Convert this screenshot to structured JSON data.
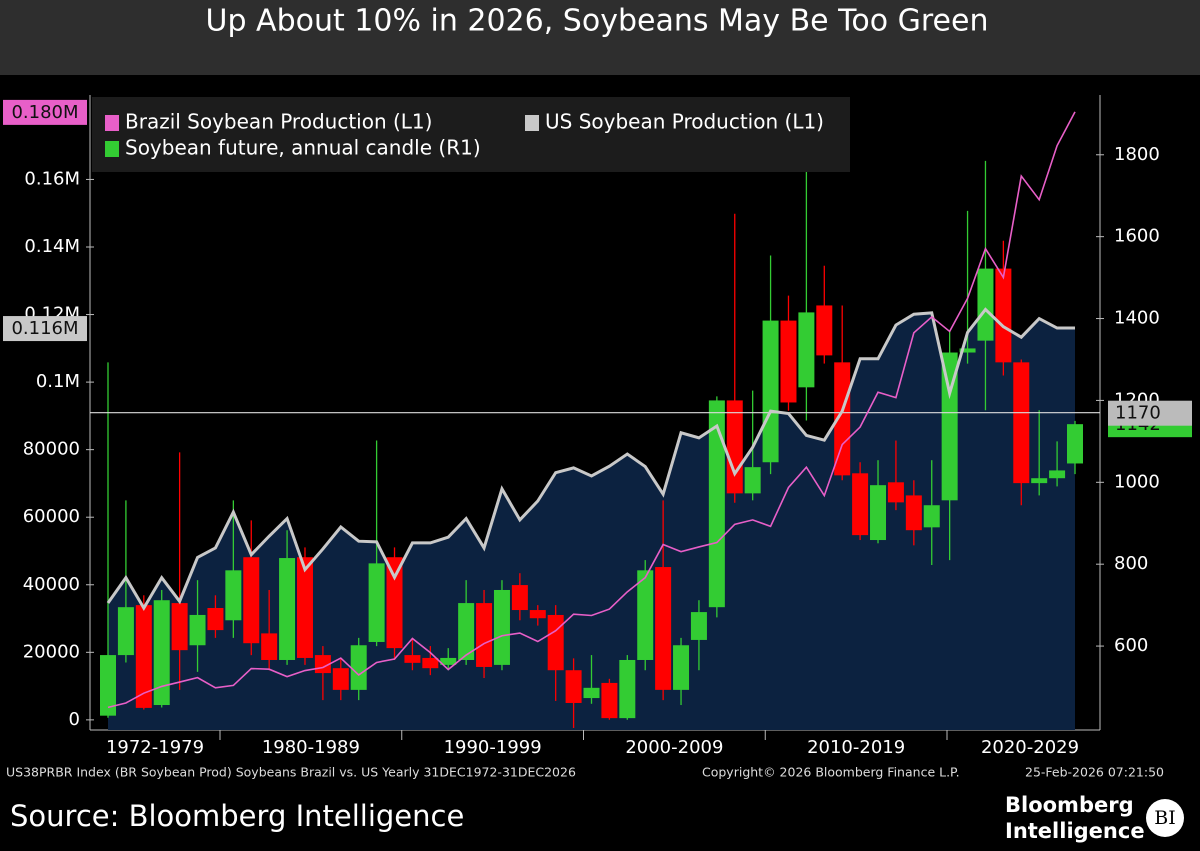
{
  "chart_data": {
    "type": "combo",
    "title": "Up About 10% in 2026, Soybeans May Be Too Green",
    "x": [
      1972,
      1973,
      1974,
      1975,
      1976,
      1977,
      1978,
      1979,
      1980,
      1981,
      1982,
      1983,
      1984,
      1985,
      1986,
      1987,
      1988,
      1989,
      1990,
      1991,
      1992,
      1993,
      1994,
      1995,
      1996,
      1997,
      1998,
      1999,
      2000,
      2001,
      2002,
      2003,
      2004,
      2005,
      2006,
      2007,
      2008,
      2009,
      2010,
      2011,
      2012,
      2013,
      2014,
      2015,
      2016,
      2017,
      2018,
      2019,
      2020,
      2021,
      2022,
      2023,
      2024,
      2025,
      2026
    ],
    "x_group_labels": [
      "1972-1979",
      "1980-1989",
      "1990-1999",
      "2000-2009",
      "2010-2019",
      "2020-2029"
    ],
    "series": [
      {
        "name": "Brazil Soybean Production (L1)",
        "type": "line",
        "axis": "y",
        "color": "#e85fc8",
        "values": [
          3700,
          5000,
          7900,
          9900,
          11200,
          12500,
          9500,
          10200,
          15200,
          15000,
          12800,
          14600,
          15500,
          18300,
          13300,
          17000,
          18000,
          24100,
          19900,
          14900,
          19200,
          22600,
          24900,
          25700,
          23200,
          26400,
          31300,
          30900,
          32800,
          37900,
          42100,
          51900,
          49800,
          51200,
          52500,
          57900,
          59200,
          57300,
          68800,
          74800,
          66400,
          81500,
          86700,
          97000,
          95400,
          114600,
          119300,
          115000,
          124800,
          139500,
          131000,
          161000,
          154000,
          170000,
          180000
        ]
      },
      {
        "name": "US Soybean Production (L1)",
        "type": "area",
        "axis": "y",
        "color": "#c8c8c8",
        "fill": "#0c2240",
        "values": [
          34600,
          42100,
          33100,
          42100,
          35100,
          48100,
          50900,
          61500,
          48900,
          54400,
          59600,
          44500,
          50600,
          57100,
          52900,
          52700,
          42200,
          52400,
          52400,
          54100,
          59600,
          50900,
          68400,
          59200,
          64800,
          73200,
          74600,
          72200,
          75100,
          78700,
          75000,
          66800,
          85000,
          83500,
          87000,
          72900,
          80700,
          91400,
          90700,
          84200,
          82800,
          91400,
          106900,
          106900,
          116900,
          120100,
          120500,
          96700,
          114700,
          121500,
          116400,
          113300,
          118800,
          116000,
          116000
        ]
      },
      {
        "name": "Soybean future, annual candle (R1)",
        "type": "candlestick",
        "axis": "y2",
        "color": "#33cc33",
        "down_color": "#ff0000",
        "open": [
          430,
          578,
          700,
          456,
          705,
          602,
          693,
          663,
          817,
          631,
          566,
          817,
          578,
          546,
          493,
          610,
          817,
          578,
          571,
          554,
          566,
          705,
          554,
          749,
          688,
          676,
          541,
          473,
          510,
          424,
          566,
          793,
          493,
          615,
          695,
          1200,
          973,
          1049,
          1395,
          1232,
          1432,
          1293,
          1022,
          859,
          1000,
          968,
          890,
          956,
          1317,
          1346,
          1522,
          1293,
          998,
          1010,
          1046
        ],
        "high": [
          1293,
          956,
          724,
          737,
          1073,
          761,
          724,
          956,
          907,
          737,
          883,
          841,
          600,
          570,
          620,
          1102,
          841,
          620,
          600,
          595,
          761,
          737,
          761,
          778,
          700,
          700,
          570,
          578,
          520,
          578,
          810,
          956,
          620,
          712,
          1210,
          1656,
          1224,
          1554,
          1456,
          1785,
          1529,
          1432,
          1049,
          1054,
          1102,
          1005,
          1054,
          1371,
          1663,
          1785,
          1590,
          1300,
          1176,
          1100,
          1150
        ],
        "low": [
          425,
          560,
          445,
          450,
          493,
          537,
          620,
          620,
          578,
          541,
          554,
          554,
          468,
          468,
          468,
          600,
          566,
          541,
          529,
          541,
          554,
          522,
          541,
          663,
          650,
          466,
          400,
          459,
          420,
          420,
          541,
          468,
          456,
          541,
          670,
          950,
          956,
          1020,
          1175,
          1151,
          1290,
          1005,
          859,
          851,
          932,
          846,
          798,
          810,
          1290,
          1176,
          1261,
          944,
          968,
          990,
          1020
        ],
        "close": [
          578,
          695,
          449,
          712,
          590,
          676,
          639,
          785,
          607,
          566,
          815,
          571,
          534,
          493,
          602,
          802,
          595,
          559,
          546,
          571,
          705,
          549,
          737,
          688,
          668,
          541,
          461,
          498,
          424,
          566,
          785,
          493,
          602,
          683,
          1200,
          973,
          1037,
          1395,
          1195,
          1415,
          1310,
          1017,
          871,
          993,
          951,
          883,
          944,
          1317,
          1327,
          1522,
          1293,
          998,
          1010,
          1029,
          1142
        ]
      }
    ],
    "ylim": [
      -3000,
      185000
    ],
    "yticks": [
      0,
      20000,
      40000,
      60000,
      80000,
      {
        "value": 100000,
        "label": "0.1M"
      },
      {
        "value": 120000,
        "label": "0.12M"
      },
      {
        "value": 140000,
        "label": "0.14M"
      },
      {
        "value": 160000,
        "label": "0.16M"
      }
    ],
    "y2lim": [
      395,
      1946
    ],
    "y2ticks": [
      600,
      800,
      1000,
      1200,
      1400,
      1600,
      1800
    ],
    "left_value_labels": [
      {
        "value": 180000,
        "label": "0.180M",
        "color": "#e85fc8"
      },
      {
        "value": 116000,
        "label": "0.116M",
        "color": "#c8c8c8"
      }
    ],
    "right_value_labels": [
      1142,
      1170
    ],
    "reference_line": 1170,
    "footnote": [
      "US38PRBR Index (BR Soybean Prod) Soybeans Brazil vs. US Yearly 31DEC1972-31DEC2026",
      "Copyright© 2026 Bloomberg Finance L.P.",
      "25-Feb-2026 07:21:50"
    ],
    "source": "Source: Bloomberg Intelligence",
    "logo": [
      "Bloomberg",
      "Intelligence",
      "BI"
    ]
  }
}
